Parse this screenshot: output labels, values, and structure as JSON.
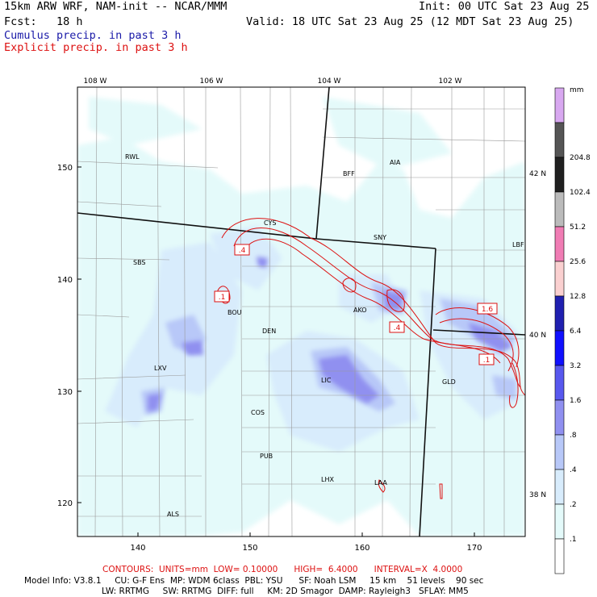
{
  "header": {
    "model_title": "15km ARW WRF, NAM-init -- NCAR/MMM",
    "init_time": "Init: 00 UTC Sat 23 Aug 25",
    "forecast_hour": "Fcst:   18 h",
    "valid_time": "Valid: 18 UTC Sat 23 Aug 25 (12 MDT Sat 23 Aug 25)",
    "cumulus_label": "Cumulus precip. in past 3 h",
    "explicit_label": "Explicit precip. in past 3 h"
  },
  "map": {
    "top_longitudes": [
      "108 W",
      "106 W",
      "104 W",
      "102 W"
    ],
    "right_latitudes": [
      "42 N",
      "40 N",
      "38 N"
    ],
    "left_ticks": [
      "150",
      "140",
      "130",
      "120"
    ],
    "bottom_ticks": [
      "140",
      "150",
      "160",
      "170"
    ],
    "stations": [
      "RWL",
      "BFF",
      "AIA",
      "CYS",
      "SNY",
      "LBF",
      "SBS",
      "BOU",
      "AKO",
      "DEN",
      "LXV",
      "LIC",
      "GLD",
      "COS",
      "PUB",
      "LHX",
      "LAA",
      "ALS"
    ],
    "contour_labels": [
      ".4",
      ".1",
      ".4",
      "1.6",
      ".1"
    ]
  },
  "colorbar": {
    "unit": "mm",
    "levels": [
      "204.8",
      "102.4",
      "51.2",
      "25.6",
      "12.8",
      "6.4",
      "3.2",
      "1.6",
      ".8",
      ".4",
      ".2",
      ".1"
    ],
    "colors": [
      "#d8a8f0",
      "#555555",
      "#202020",
      "#bbbbbb",
      "#f07cb4",
      "#fad0d0",
      "#2020b0",
      "#1010ff",
      "#5858ee",
      "#9090f0",
      "#b8c8f8",
      "#d8ecfc",
      "#e4fafa",
      "#ffffff"
    ]
  },
  "footer": {
    "contours_line": "CONTOURS:  UNITS=mm  LOW= 0.10000      HIGH=  6.4000      INTERVAL=X  4.0000",
    "model_info_1": "Model Info: V3.8.1     CU: G-F Ens  MP: WDM 6class  PBL: YSU      SF: Noah LSM     15 km    51 levels    90 sec",
    "model_info_2": "LW: RRTMG     SW: RRTMG  DIFF: full     KM: 2D Smagor  DAMP: Rayleigh3   SFLAY: MM5"
  }
}
